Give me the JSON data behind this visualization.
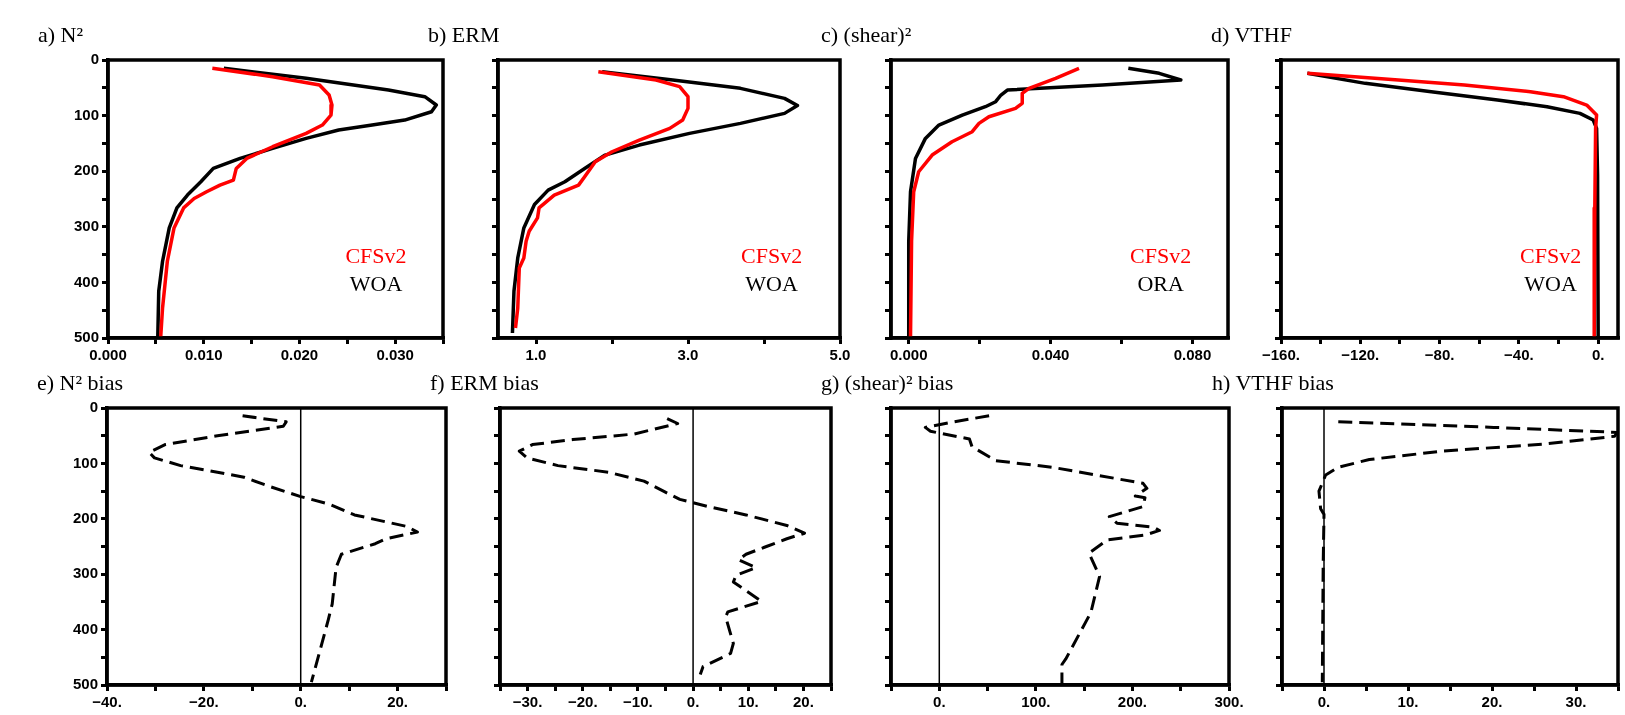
{
  "chart_data": [
    {
      "type": "line",
      "title": "a) N²",
      "xlim": [
        0,
        0.035
      ],
      "xticks": [
        {
          "value": 0,
          "label": "0.000"
        },
        {
          "value": 0.005,
          "label": null
        },
        {
          "value": 0.01,
          "label": "0.010"
        },
        {
          "value": 0.015,
          "label": null
        },
        {
          "value": 0.02,
          "label": "0.020"
        },
        {
          "value": 0.025,
          "label": null
        },
        {
          "value": 0.03,
          "label": "0.030"
        },
        {
          "value": 0.035,
          "label": null
        }
      ],
      "ylim": [
        500,
        0
      ],
      "yticks": [
        0,
        {
          "value": 50,
          "label": null
        },
        100,
        {
          "value": 150,
          "label": null
        },
        200,
        {
          "value": 250,
          "label": null
        },
        300,
        {
          "value": 350,
          "label": null
        },
        400,
        {
          "value": 450,
          "label": null
        },
        500
      ],
      "series": [
        {
          "name": "CFSv2",
          "color": "#ff0000",
          "x": [
            0.0109,
            0.0172,
            0.0221,
            0.0231,
            0.0234,
            0.0233,
            0.0224,
            0.0207,
            0.0172,
            0.0145,
            0.0134,
            0.0131,
            0.0117,
            0.0103,
            0.009,
            0.0079,
            0.0069,
            0.0062,
            0.0057,
            0.0055
          ],
          "values": [
            15,
            30,
            45,
            63,
            81,
            99,
            117,
            132,
            156,
            177,
            195,
            216,
            225,
            237,
            249,
            266,
            302,
            362,
            446,
            500
          ]
        },
        {
          "name": "WOA",
          "color": "#000000",
          "x": [
            0.0121,
            0.0207,
            0.0293,
            0.0331,
            0.0343,
            0.0338,
            0.031,
            0.0276,
            0.0241,
            0.0207,
            0.0172,
            0.0138,
            0.011,
            0.0097,
            0.0083,
            0.0072,
            0.0064,
            0.0057,
            0.0053,
            0.0052
          ],
          "values": [
            15,
            33,
            54,
            66,
            81,
            93,
            108,
            117,
            126,
            141,
            159,
            177,
            195,
            219,
            243,
            266,
            302,
            362,
            416,
            500
          ]
        }
      ]
    },
    {
      "type": "line",
      "title": "b) ERM",
      "xlim": [
        0.5,
        5
      ],
      "xticks": [
        {
          "value": 1,
          "label": "1.0"
        },
        {
          "value": 2,
          "label": null
        },
        {
          "value": 3,
          "label": "3.0"
        },
        {
          "value": 4,
          "label": null
        },
        {
          "value": 5,
          "label": "5.0"
        }
      ],
      "ylim": [
        500,
        0
      ],
      "yticks": [
        0,
        {
          "value": 50,
          "label": null
        },
        100,
        {
          "value": 150,
          "label": null
        },
        200,
        {
          "value": 250,
          "label": null
        },
        300,
        {
          "value": 350,
          "label": null
        },
        400,
        {
          "value": 450,
          "label": null
        },
        500
      ],
      "tick_labels": "x",
      "series": [
        {
          "name": "CFSv2",
          "color": "#ff0000",
          "x": [
            1.82,
            2.58,
            2.89,
            3.0,
            3.0,
            2.93,
            2.76,
            2.36,
            2.0,
            1.78,
            1.64,
            1.56,
            1.24,
            1.04,
            1.02,
            0.91,
            0.87,
            0.84,
            0.78,
            0.76,
            0.73
          ],
          "values": [
            21,
            36,
            48,
            66,
            87,
            108,
            123,
            144,
            165,
            183,
            210,
            225,
            243,
            266,
            284,
            308,
            326,
            356,
            374,
            446,
            482
          ]
        },
        {
          "name": "WOA",
          "color": "#000000",
          "x": [
            1.87,
            2.8,
            3.69,
            4.27,
            4.44,
            4.27,
            3.69,
            3.02,
            2.36,
            1.91,
            1.64,
            1.38,
            1.16,
            0.98,
            0.84,
            0.76,
            0.71,
            0.69
          ],
          "values": [
            21,
            36,
            51,
            69,
            82,
            96,
            114,
            132,
            153,
            171,
            195,
            219,
            234,
            260,
            302,
            356,
            416,
            491
          ]
        }
      ]
    },
    {
      "type": "line",
      "title": "c) (shear)²",
      "xlim": [
        -0.005,
        0.09
      ],
      "xticks": [
        {
          "value": 0,
          "label": "0.000"
        },
        {
          "value": 0.02,
          "label": null
        },
        {
          "value": 0.04,
          "label": "0.040"
        },
        {
          "value": 0.06,
          "label": null
        },
        {
          "value": 0.08,
          "label": "0.080"
        }
      ],
      "ylim": [
        500,
        0
      ],
      "yticks": [
        0,
        {
          "value": 50,
          "label": null
        },
        100,
        {
          "value": 150,
          "label": null
        },
        200,
        {
          "value": 250,
          "label": null
        },
        300,
        {
          "value": 350,
          "label": null
        },
        400,
        {
          "value": 450,
          "label": null
        },
        500
      ],
      "tick_labels": "x",
      "series": [
        {
          "name": "CFSv2",
          "color": "#ff0000",
          "x": [
            0.048,
            0.0414,
            0.0339,
            0.032,
            0.032,
            0.0301,
            0.0226,
            0.0198,
            0.0179,
            0.0122,
            0.0066,
            0.0028,
            0.0014,
            0.0008,
            0.0005
          ],
          "values": [
            15,
            33,
            51,
            60,
            78,
            87,
            102,
            114,
            129,
            147,
            171,
            201,
            237,
            326,
            500
          ]
        },
        {
          "name": "ORA",
          "color": "#000000",
          "x": [
            0.0619,
            0.0706,
            0.0767,
            0.0546,
            0.0278,
            0.026,
            0.0245,
            0.0216,
            0.0151,
            0.0085,
            0.0047,
            0.0019,
            0.0005,
            0.0,
            0.0
          ],
          "values": [
            15,
            24,
            36,
            45,
            54,
            63,
            75,
            84,
            99,
            117,
            141,
            177,
            237,
            326,
            500
          ]
        }
      ]
    },
    {
      "type": "line",
      "title": "d) VTHF",
      "xlim": [
        -160,
        10
      ],
      "xticks": [
        {
          "value": -160,
          "label": "−160."
        },
        {
          "value": -140,
          "label": null
        },
        {
          "value": -120,
          "label": "−120."
        },
        {
          "value": -100,
          "label": null
        },
        {
          "value": -80,
          "label": "−80."
        },
        {
          "value": -60,
          "label": null
        },
        {
          "value": -40,
          "label": "−40."
        },
        {
          "value": -20,
          "label": null
        },
        {
          "value": 0,
          "label": "0."
        }
      ],
      "ylim": [
        500,
        0
      ],
      "yticks": [
        0,
        {
          "value": 50,
          "label": null
        },
        100,
        {
          "value": 150,
          "label": null
        },
        200,
        {
          "value": 250,
          "label": null
        },
        300,
        {
          "value": 350,
          "label": null
        },
        400,
        {
          "value": 450,
          "label": null
        },
        500
      ],
      "tick_labels": "x",
      "series": [
        {
          "name": "CFSv2",
          "color": "#ff0000",
          "x": [
            -146.7,
            -100.8,
            -67.5,
            -34.2,
            -17.5,
            -5.8,
            -0.8,
            -1.3,
            -1.7,
            -2
          ],
          "values": [
            24,
            36,
            45,
            57,
            66,
            81,
            99,
            123,
            266,
            500
          ]
        },
        {
          "name": "WOA",
          "color": "#000000",
          "x": [
            -146.7,
            -117.5,
            -84.2,
            -50.8,
            -25.8,
            -9.2,
            -2.5,
            -0.8,
            -0.3,
            0
          ],
          "values": [
            24,
            42,
            57,
            72,
            84,
            96,
            108,
            123,
            207,
            500
          ]
        }
      ]
    },
    {
      "type": "line",
      "title": "e) N² bias",
      "xlim": [
        -40,
        30
      ],
      "xticks": [
        {
          "value": -40,
          "label": "−40."
        },
        {
          "value": -30,
          "label": null
        },
        {
          "value": -20,
          "label": "−20."
        },
        {
          "value": -10,
          "label": null
        },
        {
          "value": 0,
          "label": "0."
        },
        {
          "value": 10,
          "label": null
        },
        {
          "value": 20,
          "label": "20."
        },
        {
          "value": 30,
          "label": null
        }
      ],
      "ylim": [
        500,
        0
      ],
      "yticks": [
        0,
        {
          "value": 50,
          "label": null
        },
        100,
        {
          "value": 150,
          "label": null
        },
        200,
        {
          "value": 250,
          "label": null
        },
        300,
        {
          "value": 350,
          "label": null
        },
        400,
        {
          "value": 450,
          "label": null
        },
        500
      ],
      "ref_lines": [
        {
          "axis": "x",
          "value": 0
        }
      ],
      "series": [
        {
          "color": "#000000",
          "line_style": "dashed",
          "x": [
            -12,
            -3,
            -3.6,
            -17.2,
            -28,
            -31.3,
            -30.2,
            -24.8,
            -17.2,
            -11.7,
            -6.3,
            0,
            5.7,
            11.1,
            22,
            24.1,
            17.6,
            15.4,
            8.4,
            7.3,
            6.5,
            5.7,
            2.2
          ],
          "values": [
            14,
            25,
            33,
            50,
            66,
            80,
            90,
            104,
            116,
            125,
            142,
            160,
            173,
            193,
            214,
            224,
            236,
            245,
            264,
            288,
            354,
            382,
            495
          ]
        }
      ]
    },
    {
      "type": "line",
      "title": "f) ERM bias",
      "xlim": [
        -35,
        25
      ],
      "xticks": [
        {
          "value": -35,
          "label": null
        },
        {
          "value": -30,
          "label": "−30."
        },
        {
          "value": -25,
          "label": null
        },
        {
          "value": -20,
          "label": "−20."
        },
        {
          "value": -15,
          "label": null
        },
        {
          "value": -10,
          "label": "−10."
        },
        {
          "value": -5,
          "label": null
        },
        {
          "value": 0,
          "label": "0."
        },
        {
          "value": 5,
          "label": null
        },
        {
          "value": 10,
          "label": "10."
        },
        {
          "value": 15,
          "label": null
        },
        {
          "value": 20,
          "label": "20."
        },
        {
          "value": 25,
          "label": null
        }
      ],
      "ylim": [
        500,
        0
      ],
      "yticks": [
        0,
        {
          "value": 50,
          "label": null
        },
        100,
        {
          "value": 150,
          "label": null
        },
        200,
        {
          "value": 250,
          "label": null
        },
        300,
        {
          "value": 350,
          "label": null
        },
        400,
        {
          "value": 450,
          "label": null
        },
        500
      ],
      "tick_labels": "x",
      "ref_lines": [
        {
          "axis": "x",
          "value": 0
        }
      ],
      "series": [
        {
          "color": "#000000",
          "line_style": "dashed",
          "x": [
            -4.7,
            -2.8,
            -10.7,
            -21.8,
            -29.1,
            -31.5,
            -30.1,
            -24.5,
            -15.3,
            -8.9,
            -5.2,
            -2.4,
            3.2,
            9.6,
            17,
            20.2,
            17,
            13.3,
            9.6,
            8.2,
            11.4,
            7.8,
            7.3,
            12.4,
            6.3,
            5.9,
            7.3,
            6.8,
            1.8,
            1.3
          ],
          "values": [
            19,
            28,
            47,
            57,
            66,
            78,
            90,
            104,
            116,
            132,
            151,
            165,
            179,
            193,
            212,
            226,
            236,
            250,
            264,
            274,
            288,
            302,
            314,
            349,
            368,
            377,
            425,
            443,
            467,
            481
          ]
        }
      ]
    },
    {
      "type": "line",
      "title": "g) (shear)² bias",
      "xlim": [
        -50,
        300
      ],
      "xticks": [
        {
          "value": -50,
          "label": null
        },
        {
          "value": 0,
          "label": "0."
        },
        {
          "value": 50,
          "label": null
        },
        {
          "value": 100,
          "label": "100."
        },
        {
          "value": 150,
          "label": null
        },
        {
          "value": 200,
          "label": "200."
        },
        {
          "value": 250,
          "label": null
        },
        {
          "value": 300,
          "label": "300."
        }
      ],
      "ylim": [
        500,
        0
      ],
      "yticks": [
        0,
        {
          "value": 50,
          "label": null
        },
        100,
        {
          "value": 150,
          "label": null
        },
        200,
        {
          "value": 250,
          "label": null
        },
        300,
        {
          "value": 350,
          "label": null
        },
        400,
        {
          "value": 450,
          "label": null
        },
        500
      ],
      "tick_labels": "x",
      "ref_lines": [
        {
          "axis": "x",
          "value": 0
        }
      ],
      "series": [
        {
          "color": "#000000",
          "line_style": "dashed",
          "x": [
            51.6,
            15,
            -14.5,
            -9.1,
            31.2,
            33.9,
            52.7,
            58,
            117,
            211,
            215,
            203,
            213,
            211,
            176,
            184,
            222,
            228,
            214,
            174,
            155,
            166,
            157,
            131,
            127,
            127
          ],
          "values": [
            14,
            25,
            35,
            42,
            56,
            70,
            89,
            95,
            107,
            136,
            145,
            159,
            162,
            178,
            196,
            208,
            215,
            221,
            229,
            238,
            262,
            304,
            369,
            453,
            463,
            498
          ]
        }
      ]
    },
    {
      "type": "line",
      "title": "h) VTHF bias",
      "xlim": [
        -5,
        35
      ],
      "xticks": [
        {
          "value": -5,
          "label": null
        },
        {
          "value": 0,
          "label": "0."
        },
        {
          "value": 5,
          "label": null
        },
        {
          "value": 10,
          "label": "10."
        },
        {
          "value": 15,
          "label": null
        },
        {
          "value": 20,
          "label": "20."
        },
        {
          "value": 25,
          "label": null
        },
        {
          "value": 30,
          "label": "30."
        },
        {
          "value": 35,
          "label": null
        }
      ],
      "ylim": [
        500,
        0
      ],
      "yticks": [
        0,
        {
          "value": 50,
          "label": null
        },
        100,
        {
          "value": 150,
          "label": null
        },
        200,
        {
          "value": 250,
          "label": null
        },
        300,
        {
          "value": 350,
          "label": null
        },
        400,
        {
          "value": 450,
          "label": null
        },
        500
      ],
      "tick_labels": "x",
      "ref_lines": [
        {
          "axis": "x",
          "value": 0
        }
      ],
      "series": [
        {
          "color": "#000000",
          "line_style": "dashed",
          "x": [
            1.7,
            20.2,
            34.9,
            34.6,
            26.3,
            14,
            5.4,
            1.7,
            0.2,
            -0.6,
            -0.4,
            0,
            -0.1,
            -0.2
          ],
          "values": [
            25,
            35,
            44,
            51,
            65,
            78,
            93,
            107,
            121,
            150,
            182,
            192,
            285,
            495
          ]
        }
      ]
    }
  ]
}
